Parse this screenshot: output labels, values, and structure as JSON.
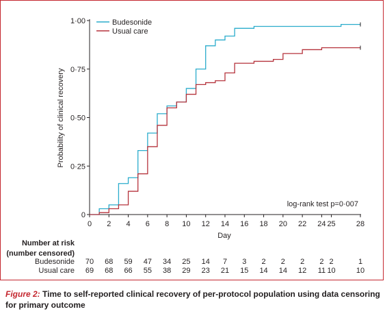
{
  "chart_data": {
    "type": "line",
    "title": "",
    "xlabel": "Day",
    "ylabel": "Probability of clinical recovery",
    "xlim": [
      0,
      28
    ],
    "ylim": [
      0,
      1.0
    ],
    "x_ticks": [
      "0",
      "2",
      "4",
      "6",
      "8",
      "10",
      "12",
      "14",
      "16",
      "18",
      "20",
      "22",
      "24",
      "25",
      "28"
    ],
    "y_ticks": [
      "0",
      "0·25",
      "0·50",
      "0·75",
      "1·00"
    ],
    "legend": {
      "placement": "top-left"
    },
    "annotation": "log-rank test p=0·007",
    "series": [
      {
        "name": "Budesonide",
        "color": "#2aaccc",
        "steps": [
          [
            0,
            0
          ],
          [
            1,
            0.03
          ],
          [
            2,
            0.05
          ],
          [
            3,
            0.16
          ],
          [
            4,
            0.19
          ],
          [
            5,
            0.33
          ],
          [
            6,
            0.42
          ],
          [
            7,
            0.52
          ],
          [
            8,
            0.56
          ],
          [
            9,
            0.58
          ],
          [
            10,
            0.65
          ],
          [
            11,
            0.75
          ],
          [
            12,
            0.87
          ],
          [
            13,
            0.9
          ],
          [
            14,
            0.92
          ],
          [
            15,
            0.96
          ],
          [
            17,
            0.97
          ],
          [
            26,
            0.98
          ],
          [
            28,
            0.98
          ]
        ]
      },
      {
        "name": "Usual care",
        "color": "#b5323b",
        "steps": [
          [
            0,
            0
          ],
          [
            1,
            0.01
          ],
          [
            2,
            0.03
          ],
          [
            3,
            0.05
          ],
          [
            4,
            0.12
          ],
          [
            5,
            0.21
          ],
          [
            6,
            0.35
          ],
          [
            7,
            0.46
          ],
          [
            8,
            0.55
          ],
          [
            9,
            0.58
          ],
          [
            10,
            0.62
          ],
          [
            11,
            0.67
          ],
          [
            12,
            0.68
          ],
          [
            13,
            0.69
          ],
          [
            14,
            0.73
          ],
          [
            15,
            0.78
          ],
          [
            17,
            0.79
          ],
          [
            19,
            0.8
          ],
          [
            20,
            0.83
          ],
          [
            22,
            0.85
          ],
          [
            24,
            0.86
          ],
          [
            28,
            0.86
          ]
        ]
      }
    ]
  },
  "risk_table": {
    "title_line1": "Number at risk",
    "title_line2": "(number censored)",
    "columns": [
      "0",
      "2",
      "4",
      "6",
      "8",
      "10",
      "12",
      "14",
      "16",
      "18",
      "20",
      "22",
      "24",
      "25",
      "28"
    ],
    "rows": [
      {
        "label": "Budesonide",
        "values": [
          "70",
          "68",
          "59",
          "47",
          "34",
          "25",
          "14",
          "7",
          "3",
          "2",
          "2",
          "2",
          "2",
          "2",
          "1"
        ]
      },
      {
        "label": "Usual care",
        "values": [
          "69",
          "68",
          "66",
          "55",
          "38",
          "29",
          "23",
          "21",
          "15",
          "14",
          "14",
          "12",
          "11",
          "10",
          "10"
        ]
      }
    ]
  },
  "caption": {
    "label": "Figure 2:",
    "text": "Time to self-reported clinical recovery of per-protocol population using data censoring for primary outcome"
  }
}
